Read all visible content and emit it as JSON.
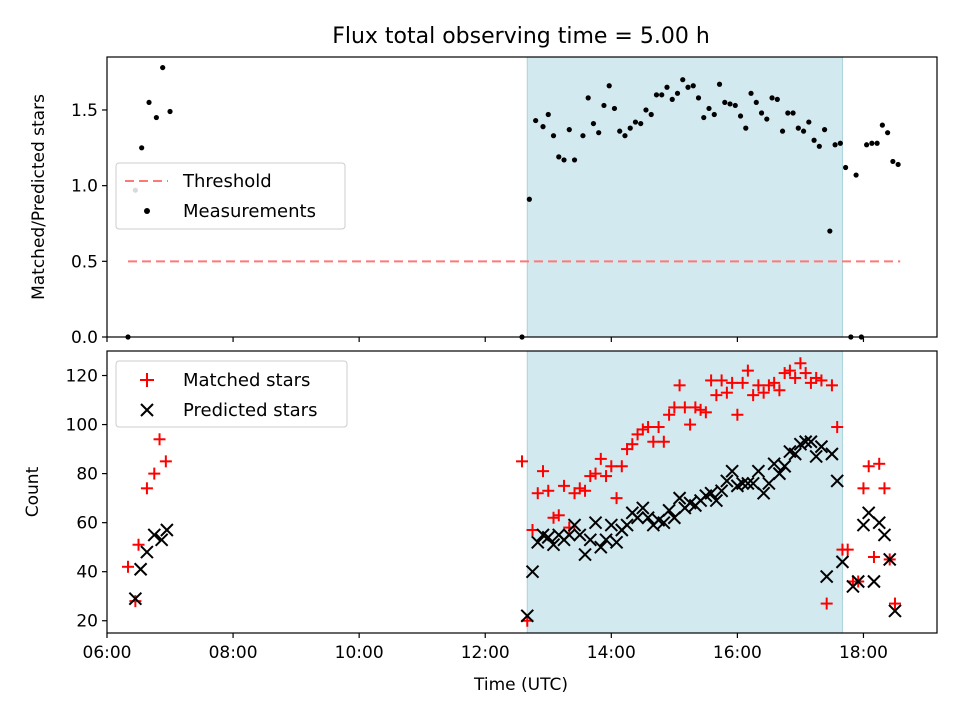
{
  "title": "Flux total observing time = 5.00 h",
  "chart_data": [
    {
      "type": "scatter",
      "ylabel": "Matched/Predicted stars",
      "xlabel": "",
      "xlim": [
        "06:00",
        "19:10"
      ],
      "ylim": [
        0,
        1.85
      ],
      "yticks": [
        0,
        0.5,
        1.0,
        1.5
      ],
      "ytick_labels": [
        "0.0",
        "0.5",
        "1.0",
        "1.5"
      ],
      "xticks": [
        "06:00",
        "08:00",
        "10:00",
        "12:00",
        "14:00",
        "16:00",
        "18:00"
      ],
      "shaded_span": [
        "12:40",
        "17:40"
      ],
      "shaded_color": "#d2e9ef",
      "legend": {
        "position": "center-left",
        "entries": [
          "Threshold",
          "Measurements"
        ]
      },
      "threshold": {
        "name": "Threshold",
        "value": 0.5,
        "x_range": [
          "06:20",
          "18:35"
        ],
        "color": "#ff7777",
        "style": "dashed"
      },
      "series": [
        {
          "name": "Measurements",
          "color": "#000000",
          "marker": "dot",
          "points": [
            [
              "06:20",
              0
            ],
            [
              "06:27",
              0.97
            ],
            [
              "06:33",
              1.25
            ],
            [
              "06:40",
              1.55
            ],
            [
              "06:47",
              1.45
            ],
            [
              "06:53",
              1.78
            ],
            [
              "06:60",
              1.49
            ],
            [
              "12:35",
              0
            ],
            [
              "12:42",
              0.91
            ],
            [
              "12:48",
              1.43
            ],
            [
              "12:55",
              1.39
            ],
            [
              "13:00",
              1.47
            ],
            [
              "13:05",
              1.33
            ],
            [
              "13:10",
              1.19
            ],
            [
              "13:15",
              1.17
            ],
            [
              "13:20",
              1.37
            ],
            [
              "13:25",
              1.17
            ],
            [
              "13:33",
              1.33
            ],
            [
              "13:38",
              1.58
            ],
            [
              "13:43",
              1.41
            ],
            [
              "13:48",
              1.35
            ],
            [
              "13:53",
              1.53
            ],
            [
              "13:58",
              1.66
            ],
            [
              "14:03",
              1.51
            ],
            [
              "14:08",
              1.36
            ],
            [
              "14:13",
              1.33
            ],
            [
              "14:18",
              1.38
            ],
            [
              "14:23",
              1.42
            ],
            [
              "14:28",
              1.41
            ],
            [
              "14:33",
              1.5
            ],
            [
              "14:38",
              1.47
            ],
            [
              "14:43",
              1.6
            ],
            [
              "14:48",
              1.6
            ],
            [
              "14:53",
              1.65
            ],
            [
              "14:58",
              1.57
            ],
            [
              "15:03",
              1.61
            ],
            [
              "15:08",
              1.7
            ],
            [
              "15:13",
              1.65
            ],
            [
              "15:18",
              1.66
            ],
            [
              "15:23",
              1.58
            ],
            [
              "15:28",
              1.45
            ],
            [
              "15:33",
              1.51
            ],
            [
              "15:38",
              1.47
            ],
            [
              "15:43",
              1.67
            ],
            [
              "15:48",
              1.55
            ],
            [
              "15:53",
              1.54
            ],
            [
              "15:58",
              1.53
            ],
            [
              "16:03",
              1.46
            ],
            [
              "16:08",
              1.38
            ],
            [
              "16:13",
              1.61
            ],
            [
              "16:18",
              1.55
            ],
            [
              "16:23",
              1.48
            ],
            [
              "16:28",
              1.44
            ],
            [
              "16:33",
              1.58
            ],
            [
              "16:38",
              1.57
            ],
            [
              "16:43",
              1.36
            ],
            [
              "16:48",
              1.48
            ],
            [
              "16:53",
              1.48
            ],
            [
              "16:58",
              1.38
            ],
            [
              "17:03",
              1.36
            ],
            [
              "17:08",
              1.42
            ],
            [
              "17:13",
              1.3
            ],
            [
              "17:18",
              1.26
            ],
            [
              "17:23",
              1.37
            ],
            [
              "17:28",
              0.7
            ],
            [
              "17:33",
              1.27
            ],
            [
              "17:38",
              1.28
            ],
            [
              "17:43",
              1.12
            ],
            [
              "17:48",
              0
            ],
            [
              "17:53",
              1.07
            ],
            [
              "17:58",
              0
            ],
            [
              "18:03",
              1.27
            ],
            [
              "18:08",
              1.28
            ],
            [
              "18:13",
              1.28
            ],
            [
              "18:18",
              1.4
            ],
            [
              "18:23",
              1.35
            ],
            [
              "18:28",
              1.16
            ],
            [
              "18:33",
              1.14
            ]
          ]
        }
      ]
    },
    {
      "type": "scatter",
      "ylabel": "Count",
      "xlabel": "Time (UTC)",
      "xlim": [
        "06:00",
        "19:10"
      ],
      "ylim": [
        15,
        130
      ],
      "yticks": [
        20,
        40,
        60,
        80,
        100,
        120
      ],
      "ytick_labels": [
        "20",
        "40",
        "60",
        "80",
        "100",
        "120"
      ],
      "xticks": [
        "06:00",
        "08:00",
        "10:00",
        "12:00",
        "14:00",
        "16:00",
        "18:00"
      ],
      "shaded_span": [
        "12:40",
        "17:40"
      ],
      "shaded_color": "#d2e9ef",
      "legend": {
        "position": "top-left",
        "entries": [
          "Matched stars",
          "Predicted stars"
        ]
      },
      "series": [
        {
          "name": "Matched stars",
          "color": "#ff0000",
          "marker": "plus",
          "points": [
            [
              "06:20",
              42
            ],
            [
              "06:27",
              28
            ],
            [
              "06:30",
              51
            ],
            [
              "06:38",
              74
            ],
            [
              "06:45",
              80
            ],
            [
              "06:50",
              94
            ],
            [
              "06:56",
              85
            ],
            [
              "12:35",
              85
            ],
            [
              "12:40",
              20
            ],
            [
              "12:45",
              57
            ],
            [
              "12:50",
              72
            ],
            [
              "12:55",
              81
            ],
            [
              "13:00",
              73
            ],
            [
              "13:05",
              62
            ],
            [
              "13:10",
              63
            ],
            [
              "13:15",
              75
            ],
            [
              "13:20",
              58
            ],
            [
              "13:25",
              72
            ],
            [
              "13:30",
              74
            ],
            [
              "13:35",
              73
            ],
            [
              "13:40",
              79
            ],
            [
              "13:45",
              80
            ],
            [
              "13:50",
              86
            ],
            [
              "13:55",
              79
            ],
            [
              "14:00",
              83
            ],
            [
              "14:05",
              70
            ],
            [
              "14:10",
              83
            ],
            [
              "14:15",
              90
            ],
            [
              "14:20",
              92
            ],
            [
              "14:25",
              96
            ],
            [
              "14:30",
              98
            ],
            [
              "14:35",
              99
            ],
            [
              "14:40",
              93
            ],
            [
              "14:45",
              99
            ],
            [
              "14:50",
              93
            ],
            [
              "14:55",
              104
            ],
            [
              "15:00",
              107
            ],
            [
              "15:05",
              116
            ],
            [
              "15:10",
              107
            ],
            [
              "15:15",
              100
            ],
            [
              "15:20",
              107
            ],
            [
              "15:25",
              106
            ],
            [
              "15:30",
              105
            ],
            [
              "15:35",
              118
            ],
            [
              "15:40",
              112
            ],
            [
              "15:45",
              118
            ],
            [
              "15:50",
              113
            ],
            [
              "15:55",
              117
            ],
            [
              "16:00",
              104
            ],
            [
              "16:05",
              117
            ],
            [
              "16:10",
              122
            ],
            [
              "16:15",
              112
            ],
            [
              "16:20",
              116
            ],
            [
              "16:25",
              113
            ],
            [
              "16:30",
              116
            ],
            [
              "16:35",
              117
            ],
            [
              "16:40",
              114
            ],
            [
              "16:45",
              121
            ],
            [
              "16:50",
              122
            ],
            [
              "16:55",
              119
            ],
            [
              "17:00",
              125
            ],
            [
              "17:05",
              121
            ],
            [
              "17:10",
              117
            ],
            [
              "17:15",
              119
            ],
            [
              "17:20",
              118
            ],
            [
              "17:25",
              27
            ],
            [
              "17:30",
              116
            ],
            [
              "17:35",
              99
            ],
            [
              "17:40",
              49
            ],
            [
              "17:45",
              49
            ],
            [
              "17:50",
              36
            ],
            [
              "17:55",
              36
            ],
            [
              "18:00",
              74
            ],
            [
              "18:05",
              83
            ],
            [
              "18:10",
              46
            ],
            [
              "18:15",
              84
            ],
            [
              "18:20",
              74
            ],
            [
              "18:25",
              45
            ],
            [
              "18:30",
              27
            ]
          ]
        },
        {
          "name": "Predicted stars",
          "color": "#000000",
          "marker": "x",
          "points": [
            [
              "06:27",
              29
            ],
            [
              "06:32",
              41
            ],
            [
              "06:38",
              48
            ],
            [
              "06:45",
              55
            ],
            [
              "06:52",
              53
            ],
            [
              "06:57",
              57
            ],
            [
              "12:40",
              22
            ],
            [
              "12:45",
              40
            ],
            [
              "12:50",
              52
            ],
            [
              "12:55",
              55
            ],
            [
              "13:00",
              54
            ],
            [
              "13:05",
              51
            ],
            [
              "13:10",
              55
            ],
            [
              "13:15",
              53
            ],
            [
              "13:20",
              55
            ],
            [
              "13:25",
              59
            ],
            [
              "13:30",
              55
            ],
            [
              "13:35",
              47
            ],
            [
              "13:40",
              53
            ],
            [
              "13:45",
              60
            ],
            [
              "13:50",
              50
            ],
            [
              "13:55",
              53
            ],
            [
              "14:00",
              59
            ],
            [
              "14:05",
              52
            ],
            [
              "14:10",
              57
            ],
            [
              "14:15",
              59
            ],
            [
              "14:20",
              64
            ],
            [
              "14:25",
              62
            ],
            [
              "14:30",
              66
            ],
            [
              "14:35",
              62
            ],
            [
              "14:40",
              59
            ],
            [
              "14:45",
              61
            ],
            [
              "14:50",
              60
            ],
            [
              "14:55",
              65
            ],
            [
              "15:00",
              62
            ],
            [
              "15:05",
              70
            ],
            [
              "15:10",
              66
            ],
            [
              "15:15",
              68
            ],
            [
              "15:20",
              67
            ],
            [
              "15:25",
              69
            ],
            [
              "15:30",
              71
            ],
            [
              "15:35",
              72
            ],
            [
              "15:40",
              69
            ],
            [
              "15:45",
              73
            ],
            [
              "15:50",
              77
            ],
            [
              "15:55",
              81
            ],
            [
              "16:00",
              75
            ],
            [
              "16:05",
              76
            ],
            [
              "16:10",
              76
            ],
            [
              "16:15",
              76
            ],
            [
              "16:20",
              81
            ],
            [
              "16:25",
              72
            ],
            [
              "16:30",
              76
            ],
            [
              "16:35",
              84
            ],
            [
              "16:40",
              80
            ],
            [
              "16:45",
              83
            ],
            [
              "16:50",
              89
            ],
            [
              "16:55",
              88
            ],
            [
              "17:00",
              92
            ],
            [
              "17:05",
              93
            ],
            [
              "17:10",
              93
            ],
            [
              "17:15",
              87
            ],
            [
              "17:20",
              91
            ],
            [
              "17:25",
              38
            ],
            [
              "17:30",
              88
            ],
            [
              "17:35",
              77
            ],
            [
              "17:40",
              44
            ],
            [
              "17:50",
              34
            ],
            [
              "17:55",
              36
            ],
            [
              "18:00",
              59
            ],
            [
              "18:05",
              64
            ],
            [
              "18:10",
              36
            ],
            [
              "18:15",
              60
            ],
            [
              "18:20",
              55
            ],
            [
              "18:25",
              45
            ],
            [
              "18:30",
              24
            ]
          ]
        }
      ]
    }
  ]
}
